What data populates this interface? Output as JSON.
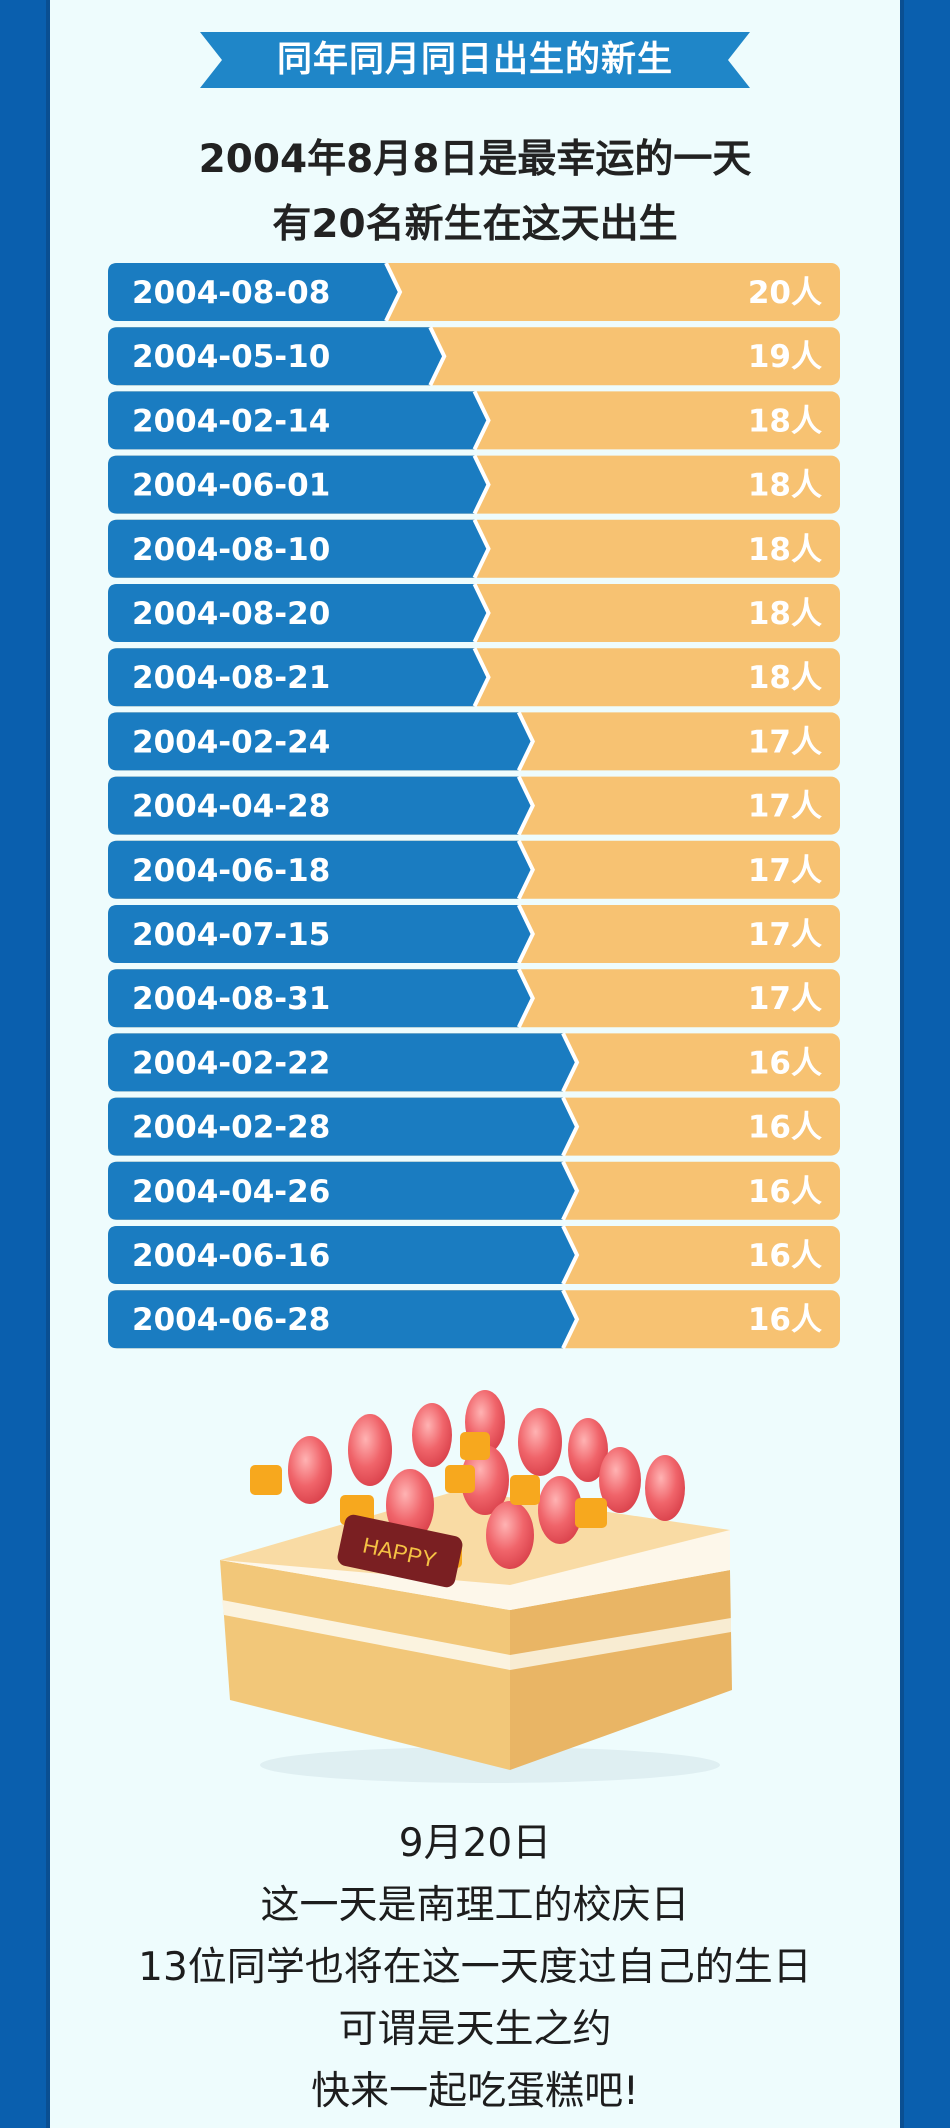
{
  "header": {
    "banner": "同年同月同日出生的新生",
    "headline_line1": "2004年8月8日是最幸运的一天",
    "headline_line2": "有20名新生在这天出生"
  },
  "chart_data": {
    "type": "bar",
    "orientation": "horizontal",
    "unit_suffix": "人",
    "categories": [
      "2004-08-08",
      "2004-05-10",
      "2004-02-14",
      "2004-06-01",
      "2004-08-10",
      "2004-08-20",
      "2004-08-21",
      "2004-02-24",
      "2004-04-28",
      "2004-06-18",
      "2004-07-15",
      "2004-08-31",
      "2004-02-22",
      "2004-02-28",
      "2004-04-26",
      "2004-06-16",
      "2004-06-28"
    ],
    "values": [
      20,
      19,
      18,
      18,
      18,
      18,
      18,
      17,
      17,
      17,
      17,
      17,
      16,
      16,
      16,
      16,
      16
    ],
    "colors": {
      "bar": "#1a7cc1",
      "track": "#f7c272",
      "label": "#ffffff"
    }
  },
  "cake": {
    "plaque_text": "HAPPY"
  },
  "footer": {
    "line1": "9月20日",
    "line2": "这一天是南理工的校庆日",
    "line3": "13位同学也将在这一天度过自己的生日",
    "line4": "可谓是天生之约",
    "line5": "快来一起吃蛋糕吧!"
  }
}
